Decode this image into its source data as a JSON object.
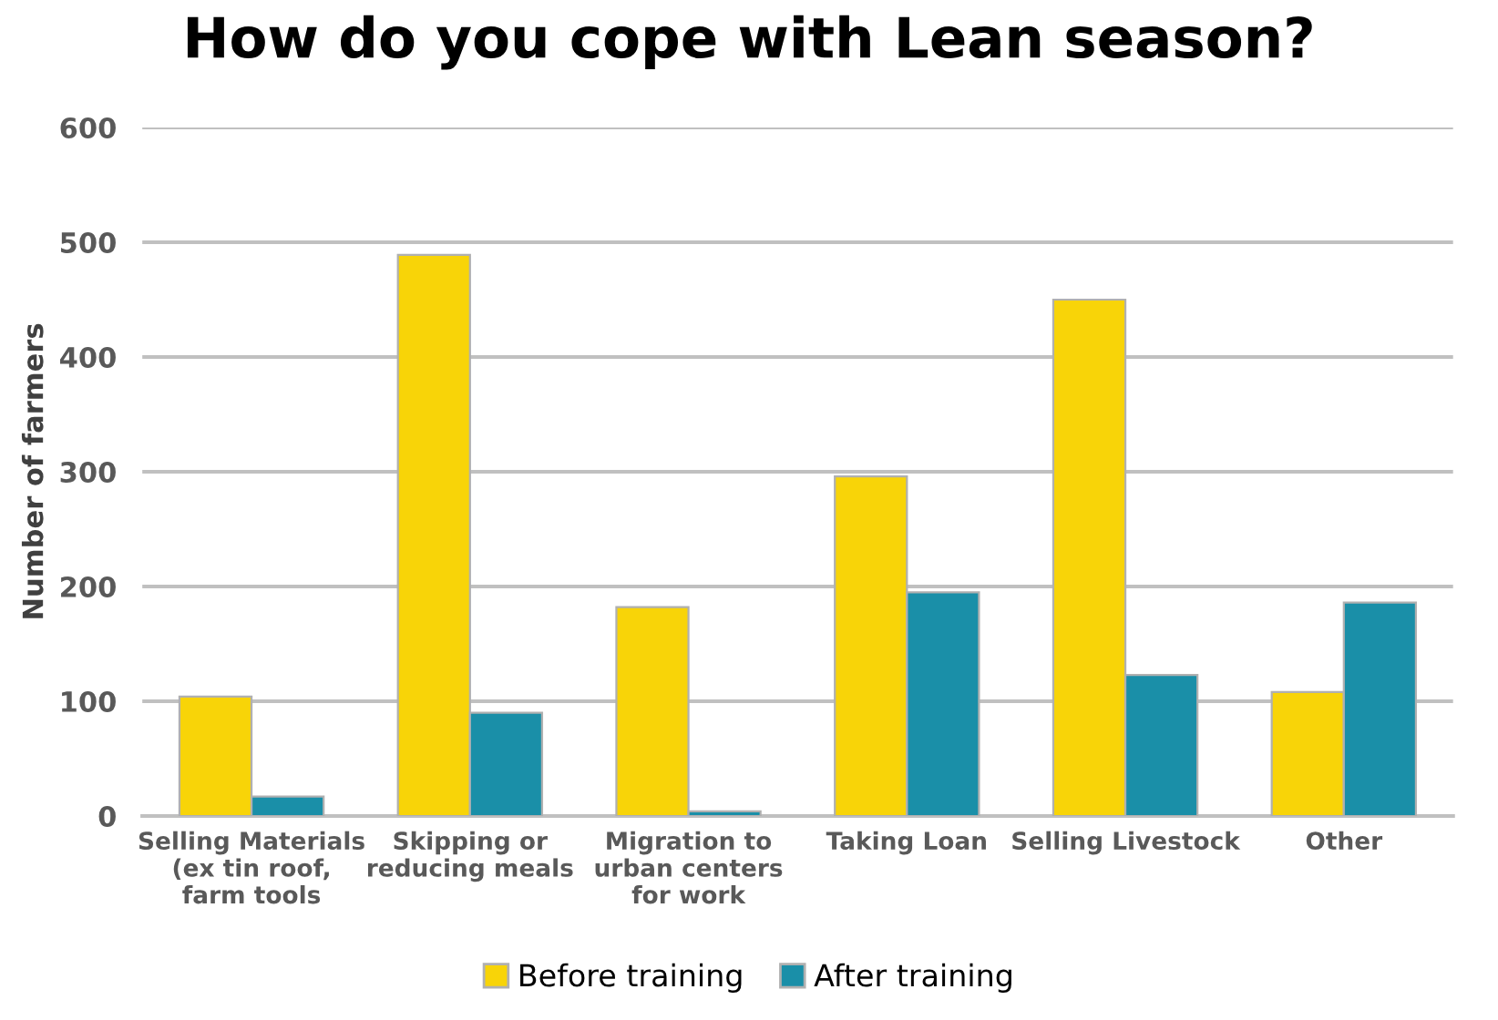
{
  "chart_data": {
    "type": "bar",
    "title": "How do you cope with Lean season?",
    "ylabel": "Number of farmers",
    "categories": [
      "Selling Materials\n(ex tin roof,\nfarm tools",
      "Skipping or\nreducing meals",
      "Migration to\nurban centers\nfor work",
      "Taking Loan",
      "Selling Livestock",
      "Other"
    ],
    "series": [
      {
        "name": "Before training",
        "color": "#f8d408",
        "values": [
          104,
          489,
          182,
          296,
          450,
          108
        ]
      },
      {
        "name": "After training",
        "color": "#1a8fa8",
        "values": [
          17,
          90,
          4,
          195,
          123,
          186
        ]
      }
    ],
    "ylim": [
      0,
      600
    ],
    "yticks": [
      0,
      100,
      200,
      300,
      400,
      500,
      600
    ],
    "grid": "y",
    "legend": "bottom"
  }
}
